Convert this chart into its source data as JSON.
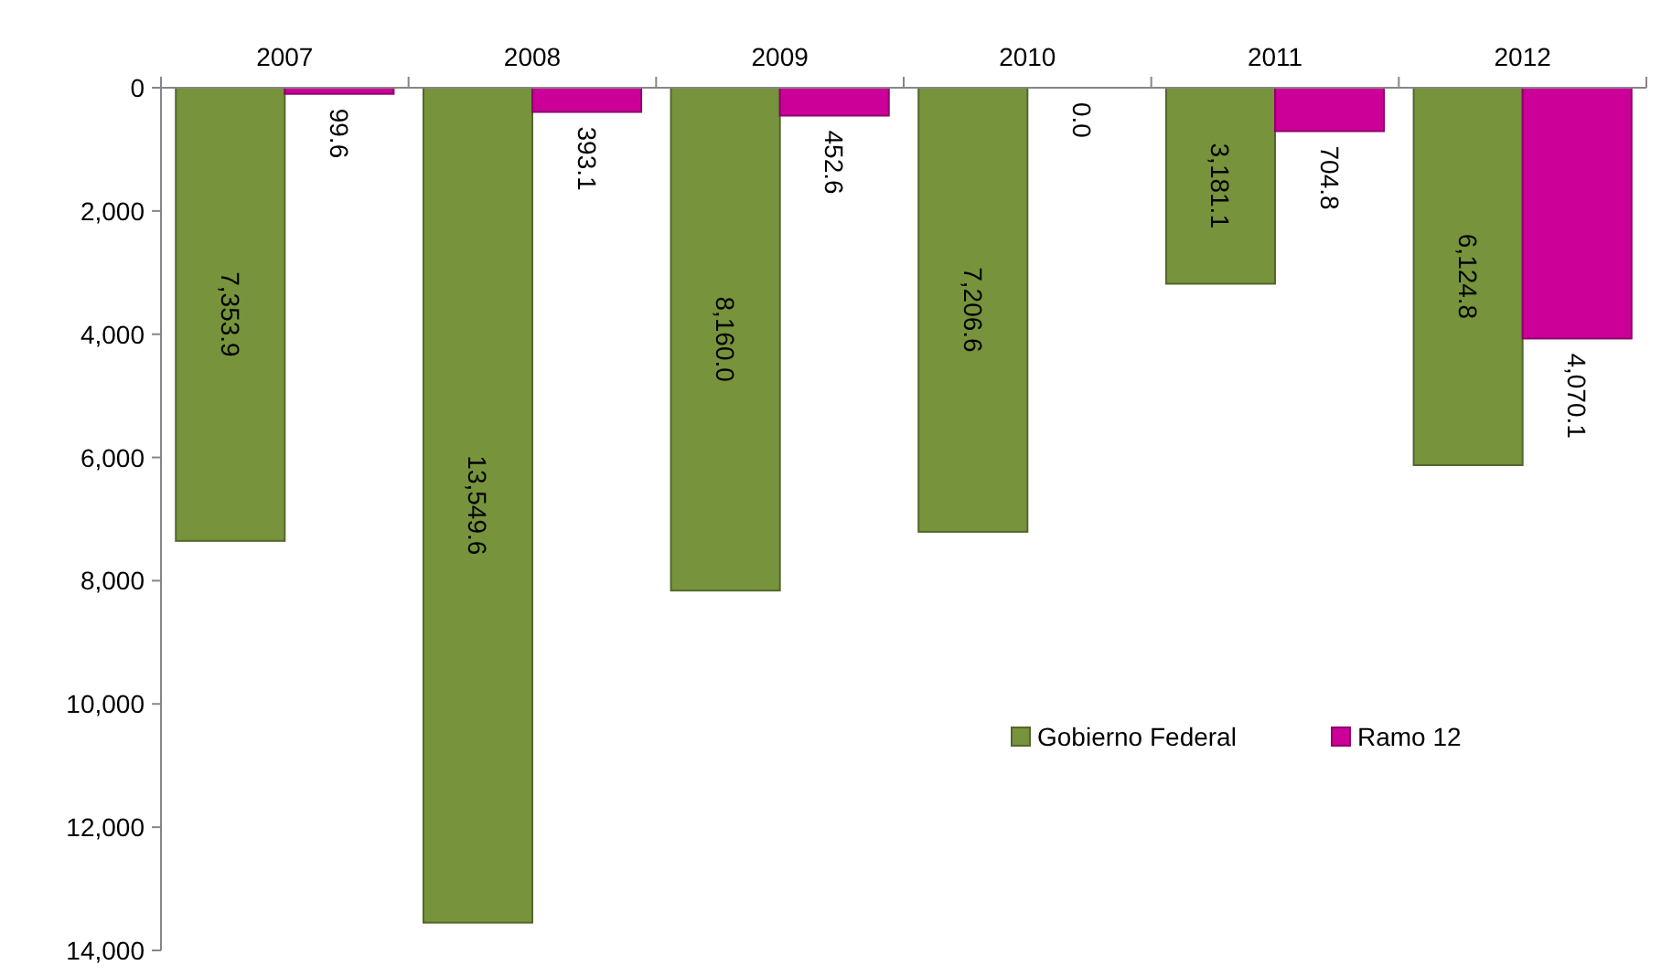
{
  "chart_data": {
    "type": "bar",
    "categories": [
      "2007",
      "2008",
      "2009",
      "2010",
      "2011",
      "2012"
    ],
    "series": [
      {
        "name": "Gobierno Federal",
        "color": "#77933c",
        "values": [
          7353.9,
          13549.6,
          8160.0,
          7206.6,
          3181.1,
          6124.8
        ]
      },
      {
        "name": "Ramo 12",
        "color": "#cc0099",
        "values": [
          99.6,
          393.1,
          452.6,
          0.0,
          704.8,
          4070.1
        ]
      }
    ],
    "ylim": [
      14000,
      0
    ],
    "yticks": [
      0,
      {
        "value": 2000,
        "label": "2,000"
      },
      {
        "value": 4000,
        "label": "4,000"
      },
      {
        "value": 6000,
        "label": "6,000"
      },
      {
        "value": 8000,
        "label": "8,000"
      },
      {
        "value": 10000,
        "label": "10,000"
      },
      {
        "value": 12000,
        "label": "12,000"
      },
      {
        "value": 14000,
        "label": "14,000"
      }
    ],
    "value_labels": [
      [
        "7,353.9",
        "13,549.6",
        "8,160.0",
        "7,206.6",
        "3,181.1",
        "6,124.8"
      ],
      [
        "99.6",
        "393.1",
        "452.6",
        "0.0",
        "704.8",
        "4,070.1"
      ]
    ],
    "legend": "right",
    "grid": false
  }
}
